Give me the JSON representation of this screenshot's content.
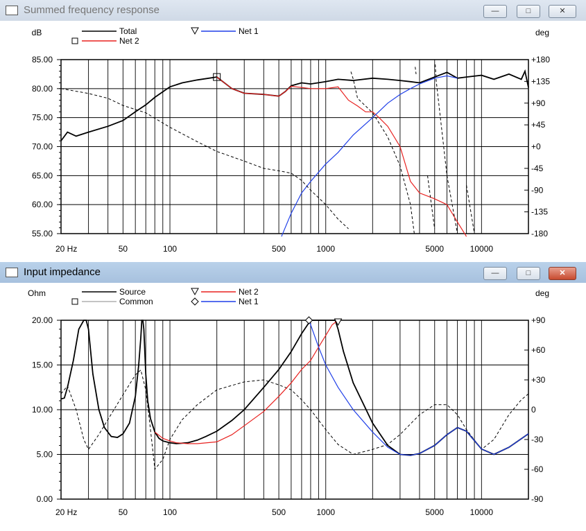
{
  "windows": [
    {
      "title": "Summed frequency response",
      "buttons": [
        "minimize",
        "maximize",
        "close"
      ],
      "active": false
    },
    {
      "title": "Input impedance",
      "buttons": [
        "minimize",
        "maximize",
        "close"
      ],
      "active": true
    }
  ],
  "chart_data": [
    {
      "type": "line",
      "title": "Summed frequency response",
      "xscale": "log",
      "xlim": [
        20,
        20000
      ],
      "xticks": [
        20,
        50,
        100,
        500,
        1000,
        5000,
        10000
      ],
      "xtick_labels": [
        "20 Hz",
        "50",
        "100",
        "500",
        "1000",
        "5000",
        "10000"
      ],
      "ylabel_left": "dB",
      "ylim_left": [
        55,
        85
      ],
      "yticks_left": [
        "55.00",
        "60.00",
        "65.00",
        "70.00",
        "75.00",
        "80.00",
        "85.00"
      ],
      "ylabel_right": "deg",
      "ylim_right": [
        -180,
        180
      ],
      "yticks_right": [
        "+180",
        "+135",
        "+90",
        "+45",
        "+0",
        "-45",
        "-90",
        "-135",
        "-180"
      ],
      "grid": true,
      "legend": [
        "Total",
        "Net 1",
        "Net 2"
      ],
      "series": [
        {
          "name": "Total",
          "color": "#000000",
          "style": "solid",
          "axis": "left",
          "x": [
            20,
            22,
            25,
            30,
            40,
            50,
            60,
            70,
            80,
            100,
            120,
            150,
            200,
            250,
            300,
            400,
            500,
            550,
            600,
            700,
            800,
            1000,
            1200,
            1500,
            2000,
            2500,
            3000,
            3500,
            4000,
            5000,
            6000,
            7000,
            8000,
            10000,
            12000,
            15000,
            18000,
            19000,
            20000
          ],
          "y": [
            71.0,
            72.5,
            71.8,
            72.5,
            73.5,
            74.5,
            76.0,
            77.2,
            78.5,
            80.3,
            81.0,
            81.5,
            82.0,
            80.0,
            79.2,
            79.0,
            78.7,
            79.5,
            80.5,
            81.0,
            80.8,
            81.2,
            81.6,
            81.4,
            81.8,
            81.6,
            81.4,
            81.2,
            81.0,
            82.0,
            82.8,
            81.8,
            82.0,
            82.3,
            81.6,
            82.5,
            81.6,
            83.0,
            80.2
          ]
        },
        {
          "name": "Net 2",
          "color": "#e8211f",
          "style": "solid",
          "axis": "left",
          "x": [
            200,
            250,
            300,
            400,
            500,
            550,
            600,
            700,
            800,
            1000,
            1200,
            1400,
            1600,
            1800,
            2000,
            2200,
            2500,
            3000,
            3500,
            4000,
            5000,
            6000,
            7000,
            8000
          ],
          "y": [
            82.0,
            80.0,
            79.2,
            79.0,
            78.7,
            79.5,
            80.4,
            80.2,
            80.0,
            80.0,
            80.3,
            78.0,
            77.0,
            76.0,
            76.0,
            75.0,
            73.5,
            70.0,
            64.0,
            62.0,
            61.0,
            60.0,
            57.0,
            54.5
          ]
        },
        {
          "name": "Net 1",
          "color": "#1f3fe8",
          "style": "solid",
          "axis": "left",
          "x": [
            520,
            600,
            700,
            800,
            1000,
            1200,
            1500,
            2000,
            2500,
            3000,
            3500,
            4000,
            5000,
            6000,
            7000
          ],
          "y": [
            54.5,
            58.5,
            62.0,
            64.0,
            67.0,
            69.0,
            72.0,
            75.0,
            77.5,
            79.0,
            80.0,
            80.8,
            81.8,
            82.2,
            81.8
          ]
        },
        {
          "name": "Total phase",
          "color": "#000000",
          "style": "dashed",
          "axis": "right",
          "x": [
            20,
            30,
            40,
            50,
            70,
            100,
            150,
            200,
            300,
            400,
            500,
            600,
            700,
            800,
            1000,
            1200,
            1400,
            1450,
            1500,
            1600,
            2000,
            2500,
            3000,
            3500,
            3700,
            3750,
            3800,
            4500,
            5000,
            5050,
            5100,
            6000,
            7000,
            7100,
            8000,
            9000,
            9100,
            10000
          ],
          "y": [
            120,
            110,
            100,
            85,
            70,
            40,
            10,
            -10,
            -30,
            -45,
            -50,
            -55,
            -70,
            -90,
            -120,
            -150,
            -170,
            155,
            140,
            100,
            70,
            20,
            -40,
            -120,
            -180,
            165,
            150,
            -60,
            -170,
            170,
            140,
            -60,
            -180,
            170,
            -80,
            -180,
            170,
            -100
          ]
        }
      ]
    },
    {
      "type": "line",
      "title": "Input impedance",
      "xscale": "log",
      "xlim": [
        20,
        20000
      ],
      "xticks": [
        20,
        50,
        100,
        500,
        1000,
        5000,
        10000
      ],
      "xtick_labels": [
        "20 Hz",
        "50",
        "100",
        "500",
        "1000",
        "5000",
        "10000"
      ],
      "ylabel_left": "Ohm",
      "ylim_left": [
        0,
        20
      ],
      "yticks_left": [
        "0.00",
        "5.00",
        "10.00",
        "15.00",
        "20.00"
      ],
      "ylabel_right": "deg",
      "ylim_right": [
        -90,
        90
      ],
      "yticks_right": [
        "+90",
        "+60",
        "+30",
        "0",
        "-30",
        "-60",
        "-90"
      ],
      "grid": true,
      "legend": [
        "Source",
        "Common",
        "Net 2",
        "Net 1"
      ],
      "series": [
        {
          "name": "Source",
          "color": "#000000",
          "style": "solid",
          "axis": "left",
          "x": [
            20,
            21,
            22,
            24,
            26,
            28,
            29,
            30,
            32,
            35,
            38,
            42,
            46,
            50,
            55,
            60,
            63,
            65,
            66,
            67,
            68,
            70,
            72,
            75,
            80,
            85,
            90,
            100,
            110,
            130,
            150,
            170,
            200,
            250,
            300,
            400,
            500,
            600,
            700,
            800,
            850,
            900,
            1000,
            1100,
            1150,
            1200,
            1300,
            1500,
            2000,
            2500,
            3000,
            3500,
            4000,
            5000,
            6000,
            7000,
            8000,
            10000,
            12000,
            15000,
            20000
          ],
          "y": [
            11.2,
            11.3,
            12.5,
            15.5,
            19.0,
            20,
            20,
            19.0,
            14.0,
            10.0,
            8.0,
            7.0,
            6.9,
            7.3,
            8.5,
            11.5,
            15.0,
            18.0,
            20,
            20,
            19.0,
            14.0,
            11.0,
            9.0,
            7.5,
            6.8,
            6.5,
            6.3,
            6.2,
            6.3,
            6.6,
            7.0,
            7.6,
            8.8,
            10.0,
            12.5,
            14.5,
            16.5,
            18.5,
            20,
            20,
            20,
            20,
            20,
            20,
            19.0,
            16.5,
            13.0,
            8.5,
            6.0,
            5.0,
            4.9,
            5.1,
            6.0,
            7.2,
            8.0,
            7.6,
            5.6,
            5.0,
            5.8,
            7.3
          ]
        },
        {
          "name": "Common",
          "color": "#000000",
          "style": "dashed",
          "axis": "right",
          "x": [
            20,
            22,
            25,
            28,
            30,
            35,
            40,
            50,
            60,
            65,
            70,
            75,
            80,
            90,
            100,
            120,
            150,
            200,
            300,
            400,
            500,
            600,
            700,
            800,
            1000,
            1200,
            1500,
            2000,
            2500,
            3000,
            4000,
            5000,
            6000,
            7000,
            8000,
            10000,
            12000,
            15000,
            18000,
            20000
          ],
          "y": [
            16,
            24,
            0,
            -30,
            -40,
            -25,
            -10,
            15,
            35,
            40,
            20,
            -20,
            -60,
            -50,
            -30,
            -10,
            5,
            20,
            28,
            30,
            25,
            20,
            10,
            0,
            -20,
            -35,
            -45,
            -40,
            -35,
            -25,
            -5,
            5,
            5,
            -5,
            -20,
            -40,
            -30,
            -5,
            10,
            16
          ]
        },
        {
          "name": "Net 2",
          "color": "#e8211f",
          "style": "solid",
          "axis": "left",
          "x": [
            80,
            90,
            100,
            110,
            130,
            150,
            200,
            250,
            300,
            400,
            500,
            600,
            700,
            800,
            900,
            1000,
            1100,
            1200
          ],
          "y": [
            7.5,
            6.8,
            6.5,
            6.3,
            6.2,
            6.2,
            6.4,
            7.2,
            8.2,
            9.8,
            11.5,
            13.0,
            14.5,
            15.5,
            17.0,
            18.3,
            19.5,
            20.0
          ]
        },
        {
          "name": "Net 1",
          "color": "#1f3fe8",
          "style": "solid",
          "axis": "left",
          "x": [
            780,
            800,
            900,
            1000,
            1200,
            1500,
            2000,
            2500,
            3000,
            3500,
            4000,
            5000,
            6000,
            7000,
            8000,
            10000,
            12000,
            15000,
            20000
          ],
          "y": [
            20.0,
            19.5,
            17.0,
            15.0,
            12.5,
            10.0,
            7.5,
            5.8,
            5.0,
            4.9,
            5.1,
            6.0,
            7.2,
            8.0,
            7.6,
            5.6,
            5.0,
            5.8,
            7.3
          ]
        }
      ]
    }
  ],
  "legend_labels": {
    "chart1": {
      "total": "Total",
      "net1": "Net 1",
      "net2": "Net 2"
    },
    "chart2": {
      "source": "Source",
      "common": "Common",
      "net2": "Net 2",
      "net1": "Net 1"
    }
  }
}
